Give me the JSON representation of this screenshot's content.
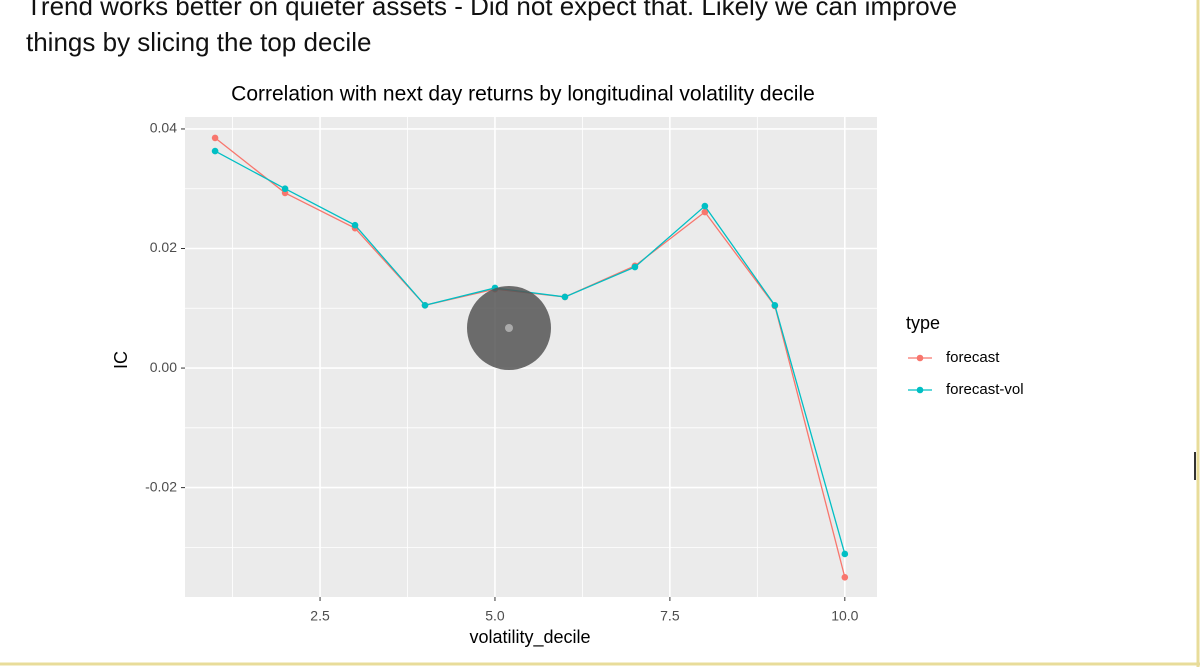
{
  "caption": [
    "Trend works better on quieter assets  - Did not expect that. Likely we can improve",
    "things by slicing the top decile"
  ],
  "chart_data": {
    "type": "line",
    "title": "Correlation with next day returns by longitudinal volatility decile",
    "x_label": "volatility_decile",
    "y_label": "IC",
    "legend_title": "type",
    "legend": "right",
    "grid": true,
    "x": [
      1,
      2,
      3,
      4,
      5,
      6,
      7,
      8,
      9,
      10
    ],
    "series": [
      {
        "name": "forecast",
        "color": "#F8766D",
        "values": [
          0.0385,
          0.0293,
          0.0234,
          0.0105,
          0.0132,
          0.0119,
          0.0171,
          0.0261,
          0.0104,
          -0.035
        ]
      },
      {
        "name": "forecast-vol",
        "color": "#00BFC4",
        "values": [
          0.0363,
          0.03,
          0.0239,
          0.0105,
          0.0134,
          0.0119,
          0.0169,
          0.0271,
          0.0105,
          -0.0311
        ]
      }
    ],
    "xlim": [
      0.57,
      10.46
    ],
    "xticks": [
      2.5,
      {
        "value": 5,
        "label": "5.0"
      },
      7.5,
      {
        "value": 10,
        "label": "10.0"
      }
    ],
    "ylim": [
      -0.0383,
      0.042
    ],
    "yticks": [
      -0.02,
      {
        "value": 0,
        "label": "0.00"
      },
      0.02,
      0.04
    ]
  }
}
